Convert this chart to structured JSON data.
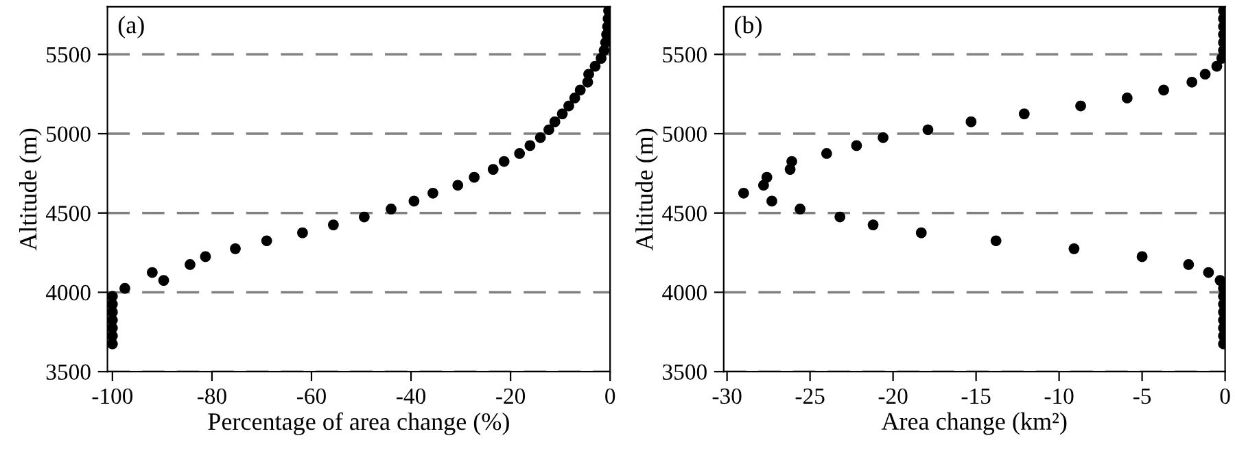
{
  "chart_data": [
    {
      "type": "scatter",
      "xlabel": "Percentage of area change (%)",
      "ylabel": "Altitude (m)",
      "annotations": [
        "(a)"
      ],
      "marker": "circle",
      "grid": "y",
      "line_style": "dashed",
      "xlim": [
        -101,
        0
      ],
      "xticks": [
        -100,
        -80,
        -60,
        -40,
        -20,
        0
      ],
      "ylim": [
        3500,
        5800
      ],
      "yticks": [
        3500,
        4000,
        4500,
        5000,
        5500
      ],
      "series": [
        {
          "color": "#000000",
          "x": [
            -100,
            -100,
            -100,
            -100,
            -100,
            -100,
            -100,
            -97.5,
            -89.7,
            -92,
            -84.4,
            -81.3,
            -75.3,
            -69,
            -61.8,
            -55.6,
            -49.4,
            -44,
            -39.4,
            -35.6,
            -30.6,
            -27.3,
            -23.5,
            -21.3,
            -18.2,
            -16.1,
            -14,
            -12.3,
            -11.1,
            -9.6,
            -8.3,
            -7.1,
            -6,
            -4.5,
            -4.3,
            -3,
            -1.8,
            -1.2,
            -0.9,
            -0.7,
            -0.5,
            -0.4,
            -0.3
          ],
          "values": [
            3675,
            3725,
            3775,
            3825,
            3875,
            3925,
            3975,
            4025,
            4075,
            4125,
            4175,
            4225,
            4275,
            4325,
            4375,
            4425,
            4475,
            4525,
            4575,
            4625,
            4675,
            4725,
            4775,
            4825,
            4875,
            4925,
            4975,
            5025,
            5075,
            5125,
            5175,
            5225,
            5275,
            5325,
            5375,
            5425,
            5475,
            5525,
            5575,
            5625,
            5675,
            5725,
            5775
          ]
        }
      ]
    },
    {
      "type": "scatter",
      "xlabel": "Area change (km²)",
      "ylabel": "Altitude (m)",
      "annotations": [
        "(b)"
      ],
      "marker": "circle",
      "grid": "y",
      "line_style": "dashed",
      "xlim": [
        -30.2,
        0
      ],
      "xticks": [
        -30,
        -25,
        -20,
        -15,
        -10,
        -5,
        0
      ],
      "ylim": [
        3500,
        5800
      ],
      "yticks": [
        3500,
        4000,
        4500,
        5000,
        5500
      ],
      "series": [
        {
          "color": "#000000",
          "x": [
            -0.1,
            -0.1,
            -0.1,
            -0.1,
            -0.1,
            -0.1,
            -0.1,
            -0.1,
            -0.3,
            -1.0,
            -2.2,
            -5.0,
            -9.1,
            -13.8,
            -18.3,
            -21.2,
            -23.2,
            -25.6,
            -27.3,
            -29.0,
            -27.8,
            -27.6,
            -26.2,
            -26.1,
            -24.0,
            -22.2,
            -20.6,
            -17.9,
            -15.3,
            -12.1,
            -8.7,
            -5.9,
            -3.7,
            -2.0,
            -1.2,
            -0.5,
            -0.2,
            -0.1,
            -0.1,
            -0.1,
            -0.1,
            -0.1,
            -0.1
          ],
          "values": [
            3675,
            3725,
            3775,
            3825,
            3875,
            3925,
            3975,
            4025,
            4075,
            4125,
            4175,
            4225,
            4275,
            4325,
            4375,
            4425,
            4475,
            4525,
            4575,
            4625,
            4675,
            4725,
            4775,
            4825,
            4875,
            4925,
            4975,
            5025,
            5075,
            5125,
            5175,
            5225,
            5275,
            5325,
            5375,
            5425,
            5475,
            5525,
            5575,
            5625,
            5675,
            5725,
            5775
          ]
        }
      ]
    }
  ]
}
